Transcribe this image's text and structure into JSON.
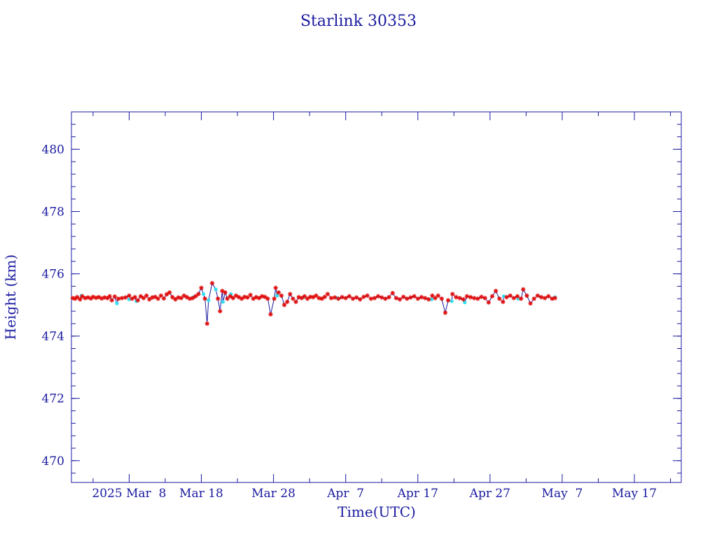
{
  "chart_data": {
    "type": "line",
    "title": "Starlink 30353",
    "xlabel": "Time(UTC)",
    "ylabel": "Height (km)",
    "x_unit": "days of 2025",
    "xlim": [
      60.0,
      144.5
    ],
    "ylim": [
      469.3,
      481.2
    ],
    "grid": false,
    "x_ticks": [
      {
        "x": 68,
        "label": "2025 Mar  8"
      },
      {
        "x": 78,
        "label": "Mar 18"
      },
      {
        "x": 88,
        "label": "Mar 28"
      },
      {
        "x": 98,
        "label": "Apr  7"
      },
      {
        "x": 108,
        "label": "Apr 17"
      },
      {
        "x": 118,
        "label": "Apr 27"
      },
      {
        "x": 128,
        "label": "May  7"
      },
      {
        "x": 138,
        "label": "May 17"
      }
    ],
    "y_ticks": [
      {
        "y": 470,
        "label": "470"
      },
      {
        "y": 472,
        "label": "472"
      },
      {
        "y": 474,
        "label": "474"
      },
      {
        "y": 476,
        "label": "476"
      },
      {
        "y": 478,
        "label": "478"
      },
      {
        "y": 480,
        "label": "480"
      }
    ],
    "colors": {
      "axes": "#1a1aa0",
      "line": "#1a1aa0",
      "marker_primary": "#e01010",
      "marker_secondary": "#30e0f0"
    },
    "series": [
      {
        "marker": "star",
        "values": [
          [
            60.2,
            475.22
          ],
          [
            60.5,
            475.2
          ],
          [
            60.8,
            475.25
          ],
          [
            61.2,
            475.18
          ],
          [
            61.5,
            475.28
          ],
          [
            61.9,
            475.22
          ],
          [
            62.3,
            475.24
          ],
          [
            62.7,
            475.21
          ],
          [
            63.0,
            475.26
          ],
          [
            63.4,
            475.23
          ],
          [
            63.8,
            475.25
          ],
          [
            64.2,
            475.21
          ],
          [
            64.6,
            475.24
          ],
          [
            65.0,
            475.22
          ],
          [
            65.3,
            475.28
          ],
          [
            65.6,
            475.15
          ],
          [
            66.0,
            475.27
          ],
          [
            66.5,
            475.2
          ],
          [
            67.0,
            475.22
          ],
          [
            67.5,
            475.24
          ],
          [
            68.0,
            475.3
          ],
          [
            68.4,
            475.2
          ],
          [
            68.8,
            475.25
          ],
          [
            69.2,
            475.15
          ],
          [
            69.6,
            475.28
          ],
          [
            70.0,
            475.22
          ],
          [
            70.4,
            475.3
          ],
          [
            70.8,
            475.18
          ],
          [
            71.2,
            475.24
          ],
          [
            71.6,
            475.26
          ],
          [
            72.0,
            475.2
          ],
          [
            72.4,
            475.3
          ],
          [
            72.8,
            475.21
          ],
          [
            73.2,
            475.34
          ],
          [
            73.6,
            475.4
          ],
          [
            74.0,
            475.25
          ],
          [
            74.4,
            475.18
          ],
          [
            74.8,
            475.24
          ],
          [
            75.2,
            475.22
          ],
          [
            75.6,
            475.3
          ],
          [
            76.0,
            475.25
          ],
          [
            76.4,
            475.2
          ],
          [
            76.8,
            475.22
          ],
          [
            77.2,
            475.28
          ],
          [
            77.6,
            475.35
          ],
          [
            78.0,
            475.55
          ],
          [
            78.5,
            475.2
          ],
          [
            78.8,
            474.4
          ],
          [
            79.5,
            475.7
          ],
          [
            80.3,
            475.2
          ],
          [
            80.6,
            474.8
          ],
          [
            80.9,
            475.45
          ],
          [
            81.3,
            475.4
          ],
          [
            81.6,
            475.2
          ],
          [
            82.0,
            475.28
          ],
          [
            82.4,
            475.22
          ],
          [
            82.8,
            475.3
          ],
          [
            83.2,
            475.25
          ],
          [
            83.6,
            475.2
          ],
          [
            84.0,
            475.26
          ],
          [
            84.4,
            475.24
          ],
          [
            84.8,
            475.32
          ],
          [
            85.2,
            475.2
          ],
          [
            85.6,
            475.25
          ],
          [
            86.0,
            475.22
          ],
          [
            86.4,
            475.28
          ],
          [
            86.8,
            475.26
          ],
          [
            87.2,
            475.2
          ],
          [
            87.6,
            474.7
          ],
          [
            88.1,
            475.2
          ],
          [
            88.3,
            475.55
          ],
          [
            88.7,
            475.4
          ],
          [
            89.1,
            475.3
          ],
          [
            89.5,
            475.0
          ],
          [
            89.9,
            475.1
          ],
          [
            90.3,
            475.35
          ],
          [
            90.7,
            475.2
          ],
          [
            91.1,
            475.1
          ],
          [
            91.5,
            475.25
          ],
          [
            91.9,
            475.22
          ],
          [
            92.3,
            475.28
          ],
          [
            92.7,
            475.2
          ],
          [
            93.1,
            475.26
          ],
          [
            93.5,
            475.25
          ],
          [
            93.9,
            475.3
          ],
          [
            94.3,
            475.22
          ],
          [
            94.7,
            475.2
          ],
          [
            95.1,
            475.26
          ],
          [
            95.5,
            475.35
          ],
          [
            96.0,
            475.22
          ],
          [
            96.5,
            475.24
          ],
          [
            97.0,
            475.2
          ],
          [
            97.5,
            475.25
          ],
          [
            98.0,
            475.22
          ],
          [
            98.5,
            475.28
          ],
          [
            99.0,
            475.2
          ],
          [
            99.5,
            475.24
          ],
          [
            100.0,
            475.18
          ],
          [
            100.5,
            475.26
          ],
          [
            101.0,
            475.3
          ],
          [
            101.5,
            475.2
          ],
          [
            102.0,
            475.22
          ],
          [
            102.5,
            475.28
          ],
          [
            103.0,
            475.24
          ],
          [
            103.5,
            475.2
          ],
          [
            104.0,
            475.25
          ],
          [
            104.5,
            475.38
          ],
          [
            105.0,
            475.22
          ],
          [
            105.5,
            475.18
          ],
          [
            106.0,
            475.26
          ],
          [
            106.5,
            475.2
          ],
          [
            107.0,
            475.24
          ],
          [
            107.5,
            475.28
          ],
          [
            108.0,
            475.2
          ],
          [
            108.5,
            475.25
          ],
          [
            109.0,
            475.22
          ],
          [
            109.5,
            475.18
          ],
          [
            110.0,
            475.3
          ],
          [
            110.4,
            475.22
          ],
          [
            110.8,
            475.3
          ],
          [
            111.3,
            475.2
          ],
          [
            111.8,
            474.75
          ],
          [
            112.2,
            475.15
          ],
          [
            112.8,
            475.35
          ],
          [
            113.3,
            475.25
          ],
          [
            113.8,
            475.22
          ],
          [
            114.3,
            475.18
          ],
          [
            114.8,
            475.28
          ],
          [
            115.3,
            475.25
          ],
          [
            115.8,
            475.22
          ],
          [
            116.3,
            475.2
          ],
          [
            116.8,
            475.26
          ],
          [
            117.3,
            475.22
          ],
          [
            117.8,
            475.08
          ],
          [
            118.3,
            475.28
          ],
          [
            118.8,
            475.45
          ],
          [
            119.3,
            475.2
          ],
          [
            119.8,
            475.1
          ],
          [
            120.3,
            475.25
          ],
          [
            120.8,
            475.3
          ],
          [
            121.3,
            475.22
          ],
          [
            121.8,
            475.28
          ],
          [
            122.3,
            475.2
          ],
          [
            122.6,
            475.5
          ],
          [
            123.1,
            475.3
          ],
          [
            123.6,
            475.05
          ],
          [
            124.1,
            475.2
          ],
          [
            124.6,
            475.3
          ],
          [
            125.1,
            475.25
          ],
          [
            125.6,
            475.22
          ],
          [
            126.1,
            475.28
          ],
          [
            126.6,
            475.2
          ],
          [
            127.0,
            475.22
          ]
        ]
      },
      {
        "marker": "circle",
        "values": [
          [
            61.4,
            475.3
          ],
          [
            66.3,
            475.05
          ],
          [
            68.0,
            475.18
          ],
          [
            69.0,
            475.12
          ],
          [
            76.9,
            475.25
          ],
          [
            78.3,
            475.35
          ],
          [
            79.0,
            475.15
          ],
          [
            80.0,
            475.5
          ],
          [
            81.0,
            475.1
          ],
          [
            82.1,
            475.35
          ],
          [
            88.5,
            475.3
          ],
          [
            92.2,
            475.25
          ],
          [
            96.8,
            475.22
          ],
          [
            109.9,
            475.18
          ],
          [
            112.7,
            475.12
          ],
          [
            114.5,
            475.08
          ],
          [
            119.9,
            475.28
          ],
          [
            121.9,
            475.2
          ],
          [
            127.0,
            475.25
          ]
        ]
      }
    ]
  }
}
